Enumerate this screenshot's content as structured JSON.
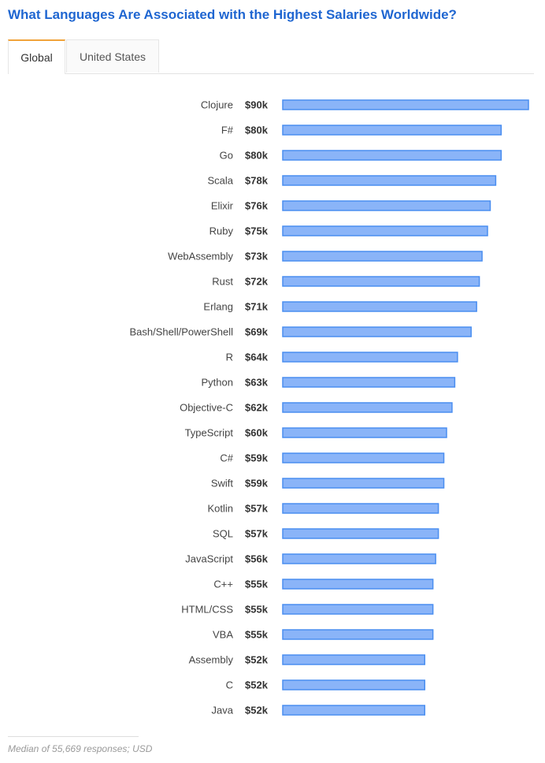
{
  "header": {
    "title": "What Languages Are Associated with the Highest Salaries Worldwide?"
  },
  "tabs": [
    {
      "label": "Global",
      "active": true
    },
    {
      "label": "United States",
      "active": false
    }
  ],
  "colors": {
    "title": "#1f66d1",
    "bar_fill": "#8ab4f8",
    "bar_stroke": "#4a8ef0",
    "active_tab_accent": "#f1a33a"
  },
  "chart_data": {
    "type": "bar",
    "orientation": "horizontal",
    "categories": [
      "Clojure",
      "F#",
      "Go",
      "Scala",
      "Elixir",
      "Ruby",
      "WebAssembly",
      "Rust",
      "Erlang",
      "Bash/Shell/PowerShell",
      "R",
      "Python",
      "Objective-C",
      "TypeScript",
      "C#",
      "Swift",
      "Kotlin",
      "SQL",
      "JavaScript",
      "C++",
      "HTML/CSS",
      "VBA",
      "Assembly",
      "C",
      "Java"
    ],
    "values": [
      90,
      80,
      80,
      78,
      76,
      75,
      73,
      72,
      71,
      69,
      64,
      63,
      62,
      60,
      59,
      59,
      57,
      57,
      56,
      55,
      55,
      55,
      52,
      52,
      52
    ],
    "value_labels": [
      "$90k",
      "$80k",
      "$80k",
      "$78k",
      "$76k",
      "$75k",
      "$73k",
      "$72k",
      "$71k",
      "$69k",
      "$64k",
      "$63k",
      "$62k",
      "$60k",
      "$59k",
      "$59k",
      "$57k",
      "$57k",
      "$56k",
      "$55k",
      "$55k",
      "$55k",
      "$52k",
      "$52k",
      "$52k"
    ],
    "xlim": [
      0,
      90
    ],
    "grid": false,
    "legend": "none"
  },
  "footnote": "Median of 55,669 responses; USD"
}
